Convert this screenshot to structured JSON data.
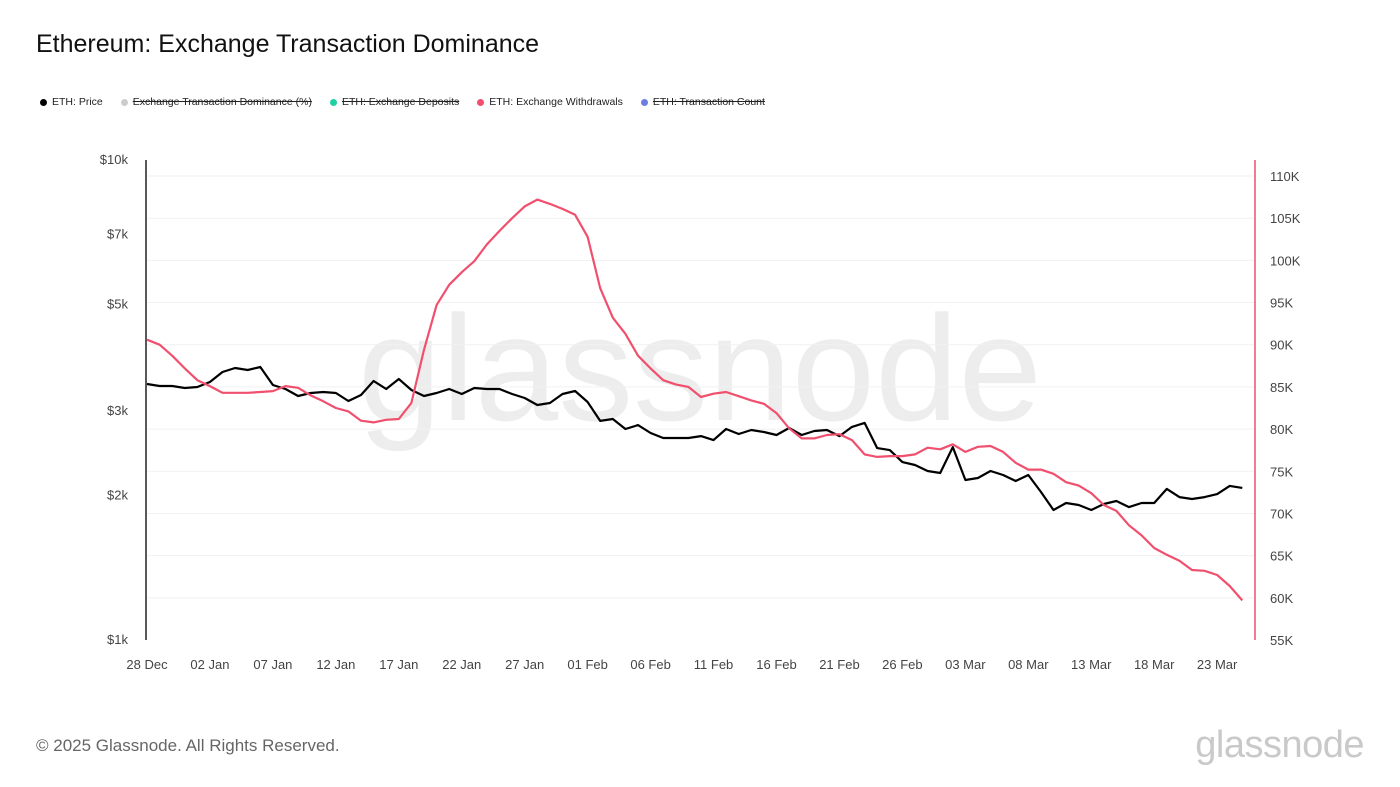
{
  "title": "Ethereum: Exchange Transaction Dominance",
  "legend": [
    {
      "label": "ETH: Price",
      "color": "#000000",
      "active": true
    },
    {
      "label": "Exchange Transaction Dominance (%)",
      "color": "#cccccc",
      "active": false
    },
    {
      "label": "ETH: Exchange Deposits",
      "color": "#1fd1a0",
      "active": false
    },
    {
      "label": "ETH: Exchange Withdrawals",
      "color": "#f0506e",
      "active": true
    },
    {
      "label": "ETH: Transaction Count",
      "color": "#6b7fe3",
      "active": false
    }
  ],
  "footer": "© 2025 Glassnode. All Rights Reserved.",
  "logo": "glassnode",
  "chart_data": {
    "type": "line",
    "title": "Ethereum: Exchange Transaction Dominance",
    "x_start": "2024-12-28",
    "x_step_days": 1,
    "x_tick_labels": [
      "28 Dec",
      "02 Jan",
      "07 Jan",
      "12 Jan",
      "17 Jan",
      "22 Jan",
      "27 Jan",
      "01 Feb",
      "06 Feb",
      "11 Feb",
      "16 Feb",
      "21 Feb",
      "26 Feb",
      "03 Mar",
      "08 Mar",
      "13 Mar",
      "18 Mar",
      "23 Mar"
    ],
    "x_tick_step_days": 5,
    "y_left": {
      "scale": "log",
      "range": [
        1000,
        10000
      ],
      "ticks": [
        1000,
        2000,
        3000,
        5000,
        7000,
        10000
      ],
      "tick_labels": [
        "$1k",
        "$2k",
        "$3k",
        "$5k",
        "$7k",
        "$10k"
      ]
    },
    "y_right": {
      "scale": "linear",
      "range": [
        55,
        112
      ],
      "ticks": [
        55,
        60,
        65,
        70,
        75,
        80,
        85,
        90,
        95,
        100,
        105,
        110
      ],
      "tick_labels": [
        "55K",
        "60K",
        "65K",
        "70K",
        "75K",
        "80K",
        "85K",
        "90K",
        "95K",
        "100K",
        "105K",
        "110K"
      ]
    },
    "grid": true,
    "series": [
      {
        "name": "ETH: Price",
        "axis": "left",
        "color": "#000000",
        "values": [
          3415,
          3382,
          3382,
          3350,
          3366,
          3448,
          3617,
          3687,
          3652,
          3705,
          3398,
          3334,
          3224,
          3271,
          3286,
          3271,
          3147,
          3239,
          3464,
          3334,
          3498,
          3318,
          3224,
          3271,
          3334,
          3255,
          3350,
          3334,
          3334,
          3255,
          3193,
          3087,
          3117,
          3255,
          3302,
          3132,
          2860,
          2887,
          2751,
          2804,
          2699,
          2635,
          2635,
          2635,
          2660,
          2609,
          2751,
          2686,
          2738,
          2712,
          2673,
          2765,
          2673,
          2725,
          2738,
          2660,
          2779,
          2833,
          2511,
          2487,
          2348,
          2315,
          2249,
          2228,
          2523,
          2154,
          2175,
          2249,
          2207,
          2144,
          2207,
          2035,
          1866,
          1929,
          1911,
          1866,
          1920,
          1948,
          1892,
          1929,
          1929,
          2064,
          1985,
          1967,
          1985,
          2014,
          2094,
          2074
        ]
      },
      {
        "name": "ETH: Exchange Withdrawals",
        "axis": "right",
        "unit": "K",
        "color": "#f0506e",
        "values": [
          90.6,
          90.0,
          88.7,
          87.2,
          85.8,
          85.1,
          84.3,
          84.3,
          84.3,
          84.4,
          84.5,
          85.1,
          84.9,
          84.0,
          83.3,
          82.5,
          82.1,
          81.0,
          80.8,
          81.1,
          81.2,
          83.1,
          89.4,
          94.7,
          97.1,
          98.6,
          99.9,
          101.9,
          103.5,
          105.0,
          106.4,
          107.2,
          106.7,
          106.1,
          105.4,
          102.8,
          96.7,
          93.2,
          91.3,
          88.7,
          87.2,
          85.8,
          85.3,
          85.0,
          83.8,
          84.2,
          84.4,
          83.9,
          83.4,
          83.0,
          81.9,
          80.1,
          78.9,
          78.9,
          79.3,
          79.4,
          78.7,
          77.0,
          76.7,
          76.8,
          76.8,
          77.0,
          77.8,
          77.6,
          78.2,
          77.3,
          77.9,
          78.0,
          77.3,
          76.0,
          75.2,
          75.2,
          74.7,
          73.7,
          73.3,
          72.4,
          71.0,
          70.3,
          68.6,
          67.4,
          65.9,
          65.1,
          64.4,
          63.3,
          63.2,
          62.7,
          61.4,
          59.7
        ]
      }
    ]
  }
}
